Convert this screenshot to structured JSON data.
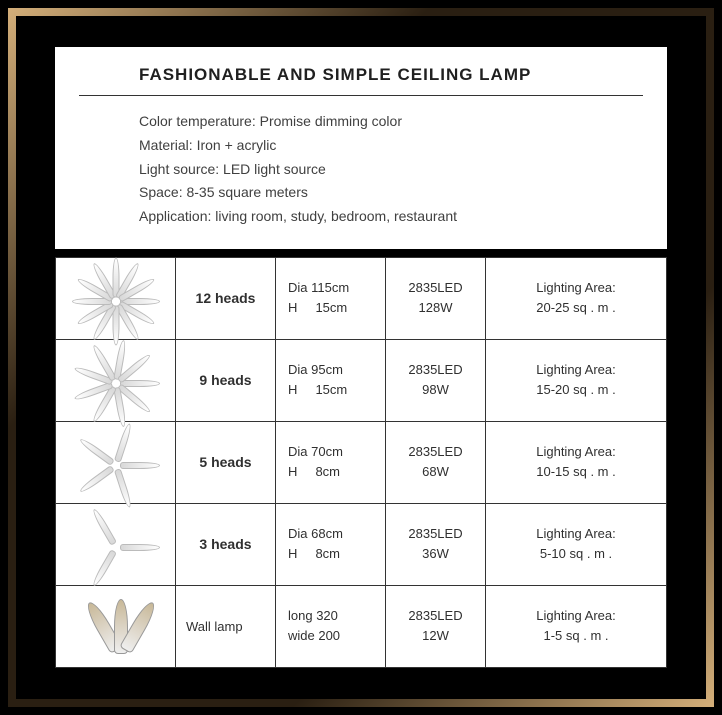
{
  "header": {
    "title": "FASHIONABLE AND SIMPLE CEILING LAMP",
    "specs": [
      "Color temperature: Promise dimming color",
      "Material: Iron + acrylic",
      "Light source: LED light source",
      "Space: 8-35 square meters",
      "Application: living room, study, bedroom, restaurant"
    ]
  },
  "rows": [
    {
      "petals": 12,
      "name": "12 heads",
      "dim_l1": "Dia 115cm",
      "dim_l2": "H     15cm",
      "led_l1": "2835LED",
      "led_l2": "128W",
      "area_l1": "Lighting Area:",
      "area_l2": "20-25 sq . m ."
    },
    {
      "petals": 9,
      "name": "9 heads",
      "dim_l1": "Dia 95cm",
      "dim_l2": "H     15cm",
      "led_l1": "2835LED",
      "led_l2": "98W",
      "area_l1": "Lighting Area:",
      "area_l2": "15-20 sq . m ."
    },
    {
      "petals": 5,
      "name": "5 heads",
      "dim_l1": "Dia 70cm",
      "dim_l2": "H     8cm",
      "led_l1": "2835LED",
      "led_l2": "68W",
      "area_l1": "Lighting Area:",
      "area_l2": "10-15 sq . m ."
    },
    {
      "petals": 3,
      "name": "3 heads",
      "dim_l1": "Dia 68cm",
      "dim_l2": "H     8cm",
      "led_l1": "2835LED",
      "led_l2": "36W",
      "area_l1": "Lighting Area:",
      "area_l2": "5-10 sq . m ."
    },
    {
      "petals": 0,
      "name": "Wall lamp",
      "dim_l1": "long 320",
      "dim_l2": "wide 200",
      "led_l1": "2835LED",
      "led_l2": "12W",
      "area_l1": "Lighting Area:",
      "area_l2": "1-5 sq . m ."
    }
  ],
  "colors": {
    "background": "#000000",
    "panel": "#ffffff",
    "border": "#333333",
    "text": "#303030",
    "gold_light": "#d4af7a",
    "gold_dark": "#2a1f12"
  }
}
